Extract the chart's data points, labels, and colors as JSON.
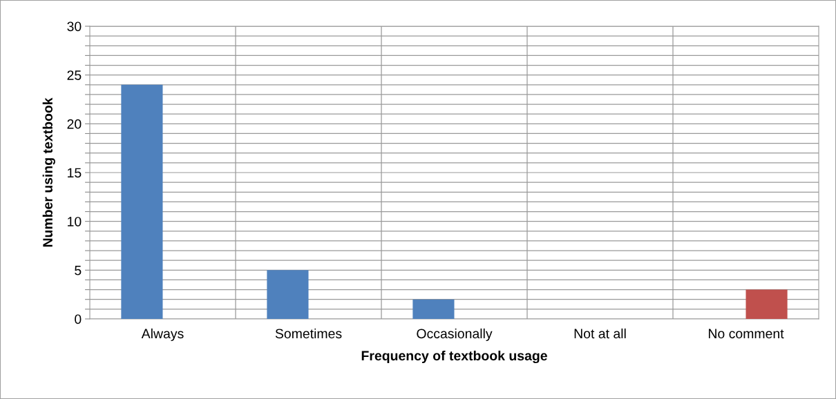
{
  "chart_data": {
    "type": "bar",
    "xlabel": "Frequency of textbook usage",
    "ylabel": "Number using textbook",
    "categories": [
      "Always",
      "Sometimes",
      "Occasionally",
      "Not at all",
      "No comment"
    ],
    "series": [
      {
        "color": "#4f81bd",
        "values": [
          24,
          5,
          2,
          0,
          null
        ]
      },
      {
        "color": "#c0504d",
        "values": [
          null,
          null,
          null,
          null,
          3
        ]
      }
    ],
    "ylim": [
      0,
      30
    ],
    "yticks": [
      0,
      {
        "value": 1,
        "label": null
      },
      {
        "value": 2,
        "label": null
      },
      {
        "value": 3,
        "label": null
      },
      {
        "value": 4,
        "label": null
      },
      5,
      {
        "value": 6,
        "label": null
      },
      {
        "value": 7,
        "label": null
      },
      {
        "value": 8,
        "label": null
      },
      {
        "value": 9,
        "label": null
      },
      10,
      {
        "value": 11,
        "label": null
      },
      {
        "value": 12,
        "label": null
      },
      {
        "value": 13,
        "label": null
      },
      {
        "value": 14,
        "label": null
      },
      15,
      {
        "value": 16,
        "label": null
      },
      {
        "value": 17,
        "label": null
      },
      {
        "value": 18,
        "label": null
      },
      {
        "value": 19,
        "label": null
      },
      20,
      {
        "value": 21,
        "label": null
      },
      {
        "value": 22,
        "label": null
      },
      {
        "value": 23,
        "label": null
      },
      {
        "value": 24,
        "label": null
      },
      25,
      {
        "value": 26,
        "label": null
      },
      {
        "value": 27,
        "label": null
      },
      {
        "value": 28,
        "label": null
      },
      {
        "value": 29,
        "label": null
      },
      30
    ],
    "grid": true,
    "legend": false
  }
}
